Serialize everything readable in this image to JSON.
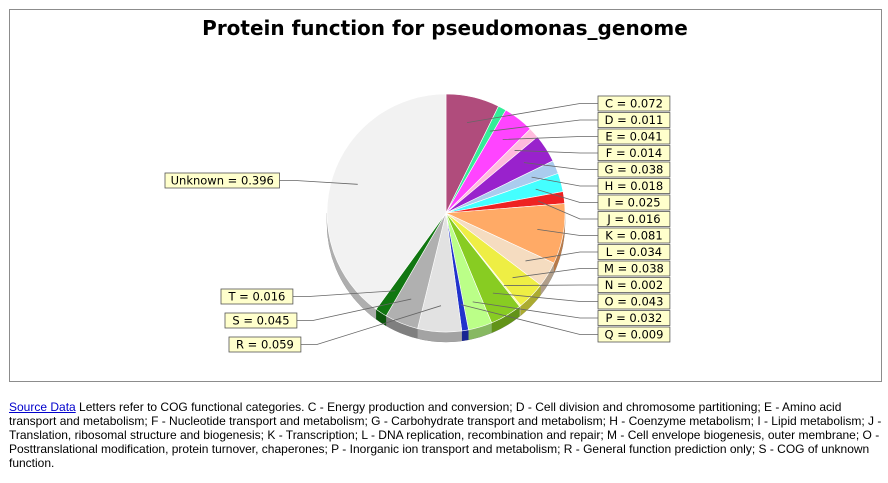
{
  "chart_data": {
    "type": "pie",
    "title": "Protein function for pseudomonas_genome",
    "slices": [
      {
        "label": "C",
        "value": 0.072,
        "color": "#b04c7c"
      },
      {
        "label": "D",
        "value": 0.011,
        "color": "#33ee99"
      },
      {
        "label": "E",
        "value": 0.041,
        "color": "#ff44ff"
      },
      {
        "label": "F",
        "value": 0.014,
        "color": "#ffbbdd"
      },
      {
        "label": "G",
        "value": 0.038,
        "color": "#9922cc"
      },
      {
        "label": "H",
        "value": 0.018,
        "color": "#aaccee"
      },
      {
        "label": "I",
        "value": 0.025,
        "color": "#44ffff"
      },
      {
        "label": "J",
        "value": 0.016,
        "color": "#ee2222"
      },
      {
        "label": "K",
        "value": 0.081,
        "color": "#ffaa66"
      },
      {
        "label": "L",
        "value": 0.034,
        "color": "#f5dcc0"
      },
      {
        "label": "M",
        "value": 0.038,
        "color": "#eeee44"
      },
      {
        "label": "N",
        "value": 0.002,
        "color": "#ffff99"
      },
      {
        "label": "O",
        "value": 0.043,
        "color": "#88cc22"
      },
      {
        "label": "P",
        "value": 0.032,
        "color": "#bbff88"
      },
      {
        "label": "Q",
        "value": 0.009,
        "color": "#2233cc"
      },
      {
        "label": "R",
        "value": 0.059,
        "color": "#e2e2e2"
      },
      {
        "label": "S",
        "value": 0.045,
        "color": "#b0b0b0"
      },
      {
        "label": "T",
        "value": 0.016,
        "color": "#117711"
      },
      {
        "label": "Unknown",
        "value": 0.396,
        "color": "#f2f2f2"
      }
    ],
    "label_texts": [
      "C = 0.072",
      "D = 0.011",
      "E = 0.041",
      "F = 0.014",
      "G = 0.038",
      "H = 0.018",
      "I = 0.025",
      "J = 0.016",
      "K = 0.081",
      "L = 0.034",
      "M = 0.038",
      "N = 0.002",
      "O = 0.043",
      "P = 0.032",
      "Q = 0.009",
      "R = 0.059",
      "S = 0.045",
      "T = 0.016",
      "Unknown = 0.396"
    ],
    "label_box_color": "#ffffcc",
    "legend": "none"
  },
  "caption": {
    "link_text": "Source Data",
    "text": " Letters refer to COG functional categories. C - Energy production and conversion; D - Cell division and chromosome partitioning; E - Amino acid transport and metabolism; F - Nucleotide transport and metabolism; G - Carbohydrate transport and metabolism; H - Coenzyme metabolism; I - Lipid metabolism; J - Translation, ribosomal structure and biogenesis; K - Transcription; L - DNA replication, recombination and repair; M - Cell envelope biogenesis, outer membrane; O - Posttranslational modification, protein turnover, chaperones; P - Inorganic ion transport and metabolism; R - General function prediction only; S - COG of unknown function."
  }
}
